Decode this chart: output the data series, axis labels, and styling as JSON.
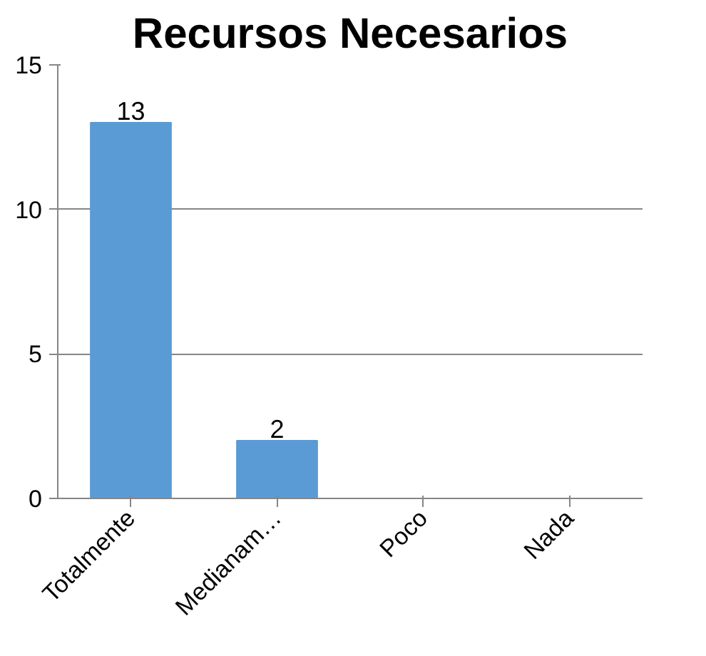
{
  "chart_data": {
    "type": "bar",
    "title": "Recursos Necesarios",
    "categories": [
      "Totalmente",
      "Medianam…",
      "Poco",
      "Nada"
    ],
    "values": [
      13,
      2,
      0,
      0
    ],
    "color": "#5b9bd5",
    "value_labels": [
      "13",
      "2",
      null,
      null
    ],
    "ylim": [
      0,
      15
    ],
    "yticks": [
      0,
      5,
      10,
      15
    ],
    "grid": "y"
  }
}
